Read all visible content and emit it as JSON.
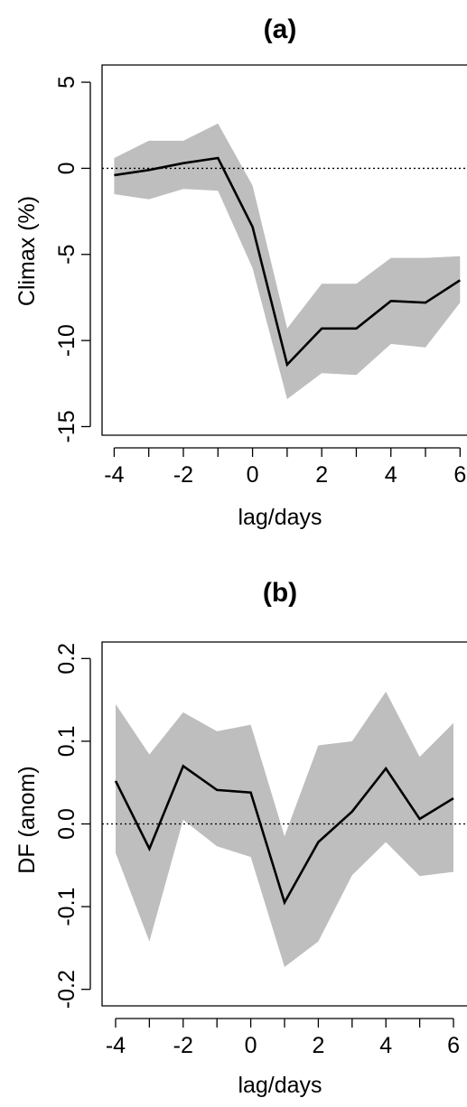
{
  "chart_data": [
    {
      "type": "line",
      "title": "(a)",
      "xlabel": "lag/days",
      "ylabel": "Climax (%)",
      "x": [
        -4,
        -3,
        -2,
        -1,
        0,
        1,
        2,
        3,
        4,
        5,
        6
      ],
      "series": [
        {
          "values": [
            -0.4,
            -0.1,
            0.3,
            0.6,
            -3.4,
            -11.4,
            -9.3,
            -9.3,
            -7.7,
            -7.8,
            -6.5
          ]
        }
      ],
      "band": {
        "upper": [
          0.6,
          1.6,
          1.6,
          2.6,
          -1.0,
          -9.3,
          -6.7,
          -6.7,
          -5.2,
          -5.2,
          -5.1
        ],
        "lower": [
          -1.5,
          -1.8,
          -1.2,
          -1.3,
          -5.8,
          -13.4,
          -11.9,
          -12.0,
          -10.2,
          -10.4,
          -7.8
        ]
      },
      "reference_line": 0,
      "xlim": [
        -4.35,
        6.2
      ],
      "ylim": [
        -15.5,
        6
      ],
      "xticks": [
        "-4",
        "-2",
        "0",
        "2",
        "4",
        "6"
      ],
      "yticks": [
        "-15",
        "-10",
        "-5",
        "0",
        "5"
      ],
      "colors": {
        "line": "#000000",
        "band": "#bebebe",
        "reference": "#000000"
      }
    },
    {
      "type": "line",
      "title": "(b)",
      "xlabel": "lag/days",
      "ylabel": "DF (anom)",
      "x": [
        -4,
        -3,
        -2,
        -1,
        0,
        1,
        2,
        3,
        4,
        5,
        6
      ],
      "series": [
        {
          "values": [
            0.052,
            -0.03,
            0.07,
            0.041,
            0.038,
            -0.095,
            -0.022,
            0.015,
            0.067,
            0.006,
            0.031
          ]
        }
      ],
      "band": {
        "upper": [
          0.145,
          0.084,
          0.135,
          0.112,
          0.12,
          -0.015,
          0.095,
          0.1,
          0.16,
          0.081,
          0.122
        ],
        "lower": [
          -0.035,
          -0.142,
          0.005,
          -0.027,
          -0.04,
          -0.173,
          -0.142,
          -0.062,
          -0.022,
          -0.063,
          -0.058
        ]
      },
      "reference_line": 0,
      "xlim": [
        -4.4,
        6.4
      ],
      "ylim": [
        -0.22,
        0.22
      ],
      "xticks": [
        "-4",
        "-2",
        "0",
        "2",
        "4",
        "6"
      ],
      "yticks": [
        "-0.2",
        "-0.1",
        "0.0",
        "0.1",
        "0.2"
      ],
      "colors": {
        "line": "#000000",
        "band": "#bebebe",
        "reference": "#000000"
      }
    }
  ]
}
